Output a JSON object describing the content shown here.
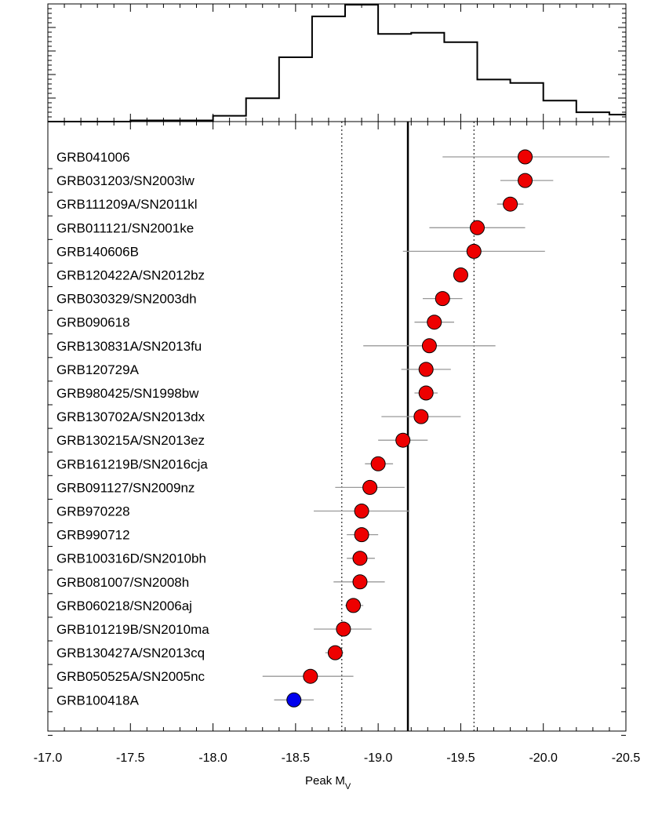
{
  "chart_data": [
    {
      "type": "histogram",
      "panel": "top",
      "bin_edges": [
        -17.0,
        -17.5,
        -18.0,
        -18.2,
        -18.4,
        -18.6,
        -18.8,
        -19.0,
        -19.2,
        -19.4,
        -19.6,
        -19.8,
        -20.0,
        -20.2,
        -20.4,
        -20.5
      ],
      "values": [
        0.0,
        0.01,
        0.05,
        0.2,
        0.55,
        0.9,
        1.0,
        0.75,
        0.76,
        0.68,
        0.36,
        0.33,
        0.18,
        0.08,
        0.06
      ],
      "xlim": [
        -17.0,
        -20.5
      ],
      "ylim": [
        0,
        1.0
      ]
    },
    {
      "type": "scatter",
      "panel": "bottom",
      "xlabel_main": "Peak M",
      "xlabel_sub": "V",
      "xlim": [
        -17.0,
        -20.5
      ],
      "xticks": [
        "-17.0",
        "-17.5",
        "-18.0",
        "-18.5",
        "-19.0",
        "-19.5",
        "-20.0",
        "-20.5"
      ],
      "xtick_values": [
        -17.0,
        -17.5,
        -18.0,
        -18.5,
        -19.0,
        -19.5,
        -20.0,
        -20.5
      ],
      "mean": -19.18,
      "sigma_lines": [
        -18.78,
        -19.58
      ],
      "colors": {
        "red": "#ee0000",
        "blue": "#0000ee",
        "errorbar": "#999999"
      },
      "points": [
        {
          "name": "GRB041006",
          "x": -19.89,
          "err_lo": -19.39,
          "err_hi": -20.4,
          "color": "red"
        },
        {
          "name": "GRB031203/SN2003lw",
          "x": -19.89,
          "err_lo": -19.74,
          "err_hi": -20.06,
          "color": "red"
        },
        {
          "name": "GRB111209A/SN2011kl",
          "x": -19.8,
          "err_lo": -19.72,
          "err_hi": -19.88,
          "color": "red"
        },
        {
          "name": "GRB011121/SN2001ke",
          "x": -19.6,
          "err_lo": -19.31,
          "err_hi": -19.89,
          "color": "red"
        },
        {
          "name": "GRB140606B",
          "x": -19.58,
          "err_lo": -19.15,
          "err_hi": -20.01,
          "color": "red"
        },
        {
          "name": "GRB120422A/SN2012bz",
          "x": -19.5,
          "err_lo": -19.5,
          "err_hi": -19.5,
          "color": "red"
        },
        {
          "name": "GRB030329/SN2003dh",
          "x": -19.39,
          "err_lo": -19.27,
          "err_hi": -19.51,
          "color": "red"
        },
        {
          "name": "GRB090618",
          "x": -19.34,
          "err_lo": -19.22,
          "err_hi": -19.46,
          "color": "red"
        },
        {
          "name": "GRB130831A/SN2013fu",
          "x": -19.31,
          "err_lo": -18.91,
          "err_hi": -19.71,
          "color": "red"
        },
        {
          "name": "GRB120729A",
          "x": -19.29,
          "err_lo": -19.14,
          "err_hi": -19.44,
          "color": "red"
        },
        {
          "name": "GRB980425/SN1998bw",
          "x": -19.29,
          "err_lo": -19.22,
          "err_hi": -19.36,
          "color": "red"
        },
        {
          "name": "GRB130702A/SN2013dx",
          "x": -19.26,
          "err_lo": -19.02,
          "err_hi": -19.5,
          "color": "red"
        },
        {
          "name": "GRB130215A/SN2013ez",
          "x": -19.15,
          "err_lo": -19.0,
          "err_hi": -19.3,
          "color": "red"
        },
        {
          "name": "GRB161219B/SN2016cja",
          "x": -19.0,
          "err_lo": -18.92,
          "err_hi": -19.09,
          "color": "red"
        },
        {
          "name": "GRB091127/SN2009nz",
          "x": -18.95,
          "err_lo": -18.74,
          "err_hi": -19.16,
          "color": "red"
        },
        {
          "name": "GRB970228",
          "x": -18.9,
          "err_lo": -18.61,
          "err_hi": -19.19,
          "color": "red"
        },
        {
          "name": "GRB990712",
          "x": -18.9,
          "err_lo": -18.81,
          "err_hi": -19.0,
          "color": "red"
        },
        {
          "name": "GRB100316D/SN2010bh",
          "x": -18.89,
          "err_lo": -18.81,
          "err_hi": -18.98,
          "color": "red"
        },
        {
          "name": "GRB081007/SN2008h",
          "x": -18.89,
          "err_lo": -18.73,
          "err_hi": -19.04,
          "color": "red"
        },
        {
          "name": "GRB060218/SN2006aj",
          "x": -18.85,
          "err_lo": -18.8,
          "err_hi": -18.91,
          "color": "red"
        },
        {
          "name": "GRB101219B/SN2010ma",
          "x": -18.79,
          "err_lo": -18.61,
          "err_hi": -18.96,
          "color": "red"
        },
        {
          "name": "GRB130427A/SN2013cq",
          "x": -18.74,
          "err_lo": -18.68,
          "err_hi": -18.79,
          "color": "red"
        },
        {
          "name": "GRB050525A/SN2005nc",
          "x": -18.59,
          "err_lo": -18.3,
          "err_hi": -18.85,
          "color": "red"
        },
        {
          "name": "GRB100418A",
          "x": -18.49,
          "err_lo": -18.37,
          "err_hi": -18.61,
          "color": "blue"
        }
      ]
    }
  ]
}
